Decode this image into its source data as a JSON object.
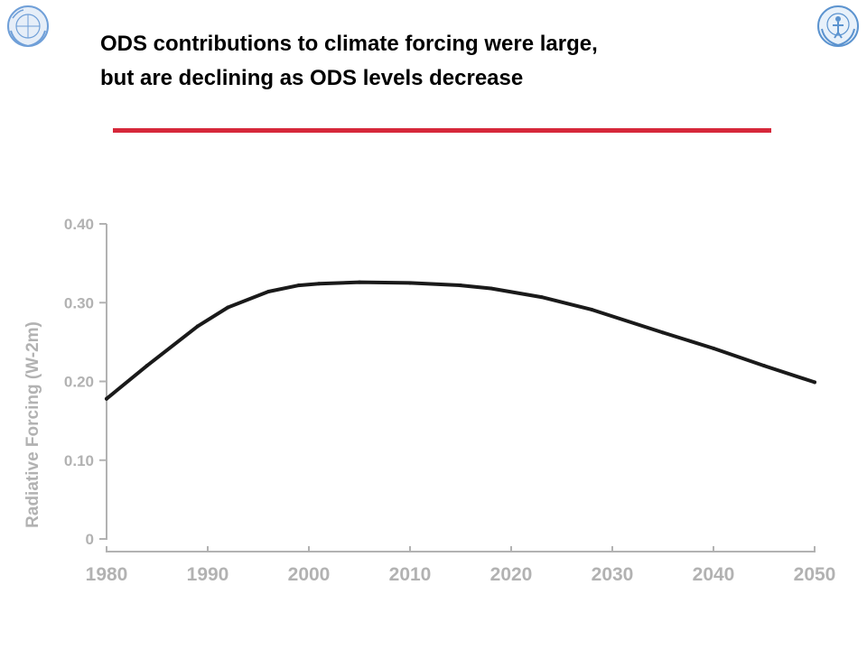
{
  "header": {
    "title_line1": "ODS contributions to climate forcing were large,",
    "title_line2": "but are declining as ODS levels decrease",
    "rule_color": "#d6283a",
    "left_logo": "wmo-emblem-icon",
    "right_logo": "unep-emblem-icon"
  },
  "chart_data": {
    "type": "line",
    "title": "",
    "xlabel": "",
    "ylabel": "Radiative Forcing (W-2m)",
    "xlim": [
      1980,
      2050
    ],
    "ylim": [
      0,
      0.4
    ],
    "x_ticks": [
      1980,
      1990,
      2000,
      2010,
      2020,
      2030,
      2040,
      2050
    ],
    "y_ticks": [
      0,
      0.1,
      0.2,
      0.3,
      0.4
    ],
    "y_tick_labels": [
      "0",
      "0.10",
      "0.20",
      "0.30",
      "0.40"
    ],
    "grid": false,
    "line_color": "#1a1a1a",
    "axis_color": "#b2b2b2",
    "series": [
      {
        "x": [
          1980,
          1984,
          1989,
          1992,
          1996,
          1999,
          2001,
          2005,
          2010,
          2015,
          2018,
          2023,
          2028,
          2035,
          2040,
          2045,
          2050
        ],
        "values": [
          0.178,
          0.22,
          0.27,
          0.294,
          0.314,
          0.322,
          0.324,
          0.326,
          0.325,
          0.322,
          0.318,
          0.307,
          0.291,
          0.262,
          0.242,
          0.22,
          0.199
        ]
      }
    ]
  }
}
